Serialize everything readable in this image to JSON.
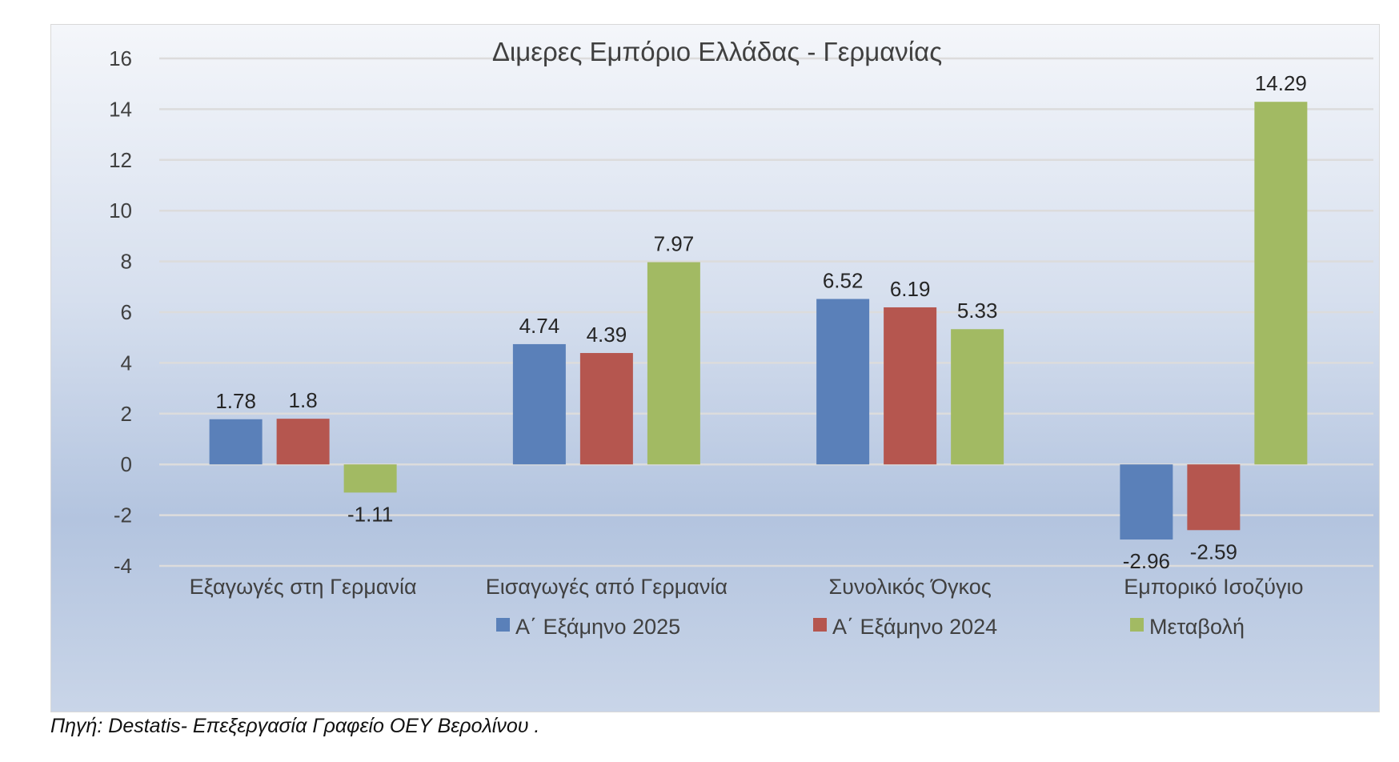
{
  "chart_data": {
    "type": "bar",
    "title": "Διμερες Εμπόριο Ελλάδας - Γερμανίας",
    "categories": [
      "Εξαγωγές στη Γερμανία",
      "Εισαγωγές από Γερμανία",
      "Συνολικός Όγκος",
      "Εμπορικό Ισοζύγιο"
    ],
    "series": [
      {
        "name": "Α΄ Εξάμηνο 2025",
        "color": "#5a80b9",
        "values": [
          1.78,
          4.74,
          6.52,
          -2.96
        ]
      },
      {
        "name": "Α΄ Εξάμηνο 2024",
        "color": "#b5564f",
        "values": [
          1.8,
          4.39,
          6.19,
          -2.59
        ]
      },
      {
        "name": "Μεταβολή",
        "color": "#a2ba63",
        "values": [
          -1.11,
          7.97,
          5.33,
          14.29
        ]
      }
    ],
    "data_labels": [
      [
        "1.78",
        "4.74",
        "6.52",
        "-2.96"
      ],
      [
        "1.8",
        "4.39",
        "6.19",
        "-2.59"
      ],
      [
        "-1.11",
        "7.97",
        "5.33",
        "14.29"
      ]
    ],
    "yticks": [
      "16",
      "14",
      "12",
      "10",
      "8",
      "6",
      "4",
      "2",
      "0",
      "-2",
      "-4"
    ],
    "ylim": [
      -4,
      16
    ],
    "grid": true,
    "legend": "bottom",
    "xlabel": "",
    "ylabel": ""
  },
  "footer": {
    "source": "Πηγή: Destatis- Επεξεργασία Γραφείο ΟΕΥ Βερολίνου ."
  }
}
